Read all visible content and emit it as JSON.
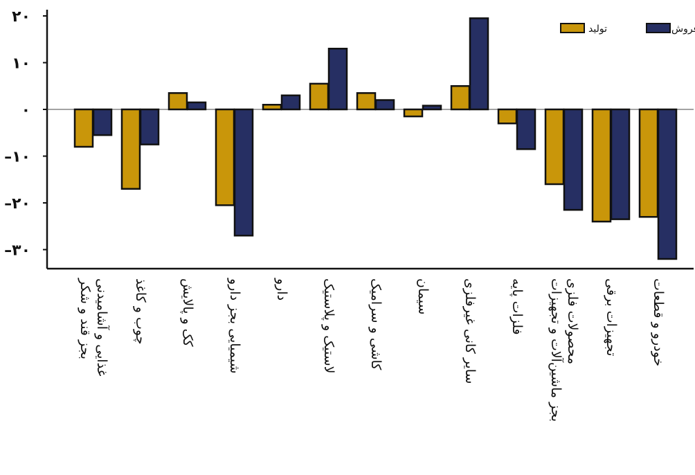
{
  "chart_data": {
    "type": "bar",
    "title": "",
    "xlabel": "",
    "ylabel": "",
    "ylim": [
      -32,
      20
    ],
    "yticks": [
      20,
      10,
      0,
      -10,
      -20,
      -30
    ],
    "ytick_labels": [
      "۲۰",
      "۱۰",
      "۰",
      "–۱۰",
      "–۲۰",
      "–۳۰"
    ],
    "categories": [
      [
        "غذایی و آشامیدنی",
        "بجز قند و شکر"
      ],
      [
        "چوب و کاغذ"
      ],
      [
        "کک و پالایش"
      ],
      [
        "شیمیایی بجز دارو"
      ],
      [
        "دارو"
      ],
      [
        "لاستیک و پلاستیک"
      ],
      [
        "کاشی و سرامیک"
      ],
      [
        "سیمان"
      ],
      [
        "سایر کانی غیرفلزی"
      ],
      [
        "فلزات پایه"
      ],
      [
        "محصولات فلزی",
        "بجز ماشین‌آلات و تجهیزات"
      ],
      [
        "تجهیزات برقی"
      ],
      [
        "خودرو و قطعات"
      ]
    ],
    "series": [
      {
        "name": "تولید",
        "color": "#c9960a",
        "values": [
          -8,
          -17,
          3.5,
          -20.5,
          1,
          5.5,
          3.5,
          -1.5,
          5,
          -3,
          -16,
          -24,
          -23
        ]
      },
      {
        "name": "فروش",
        "color": "#262f63",
        "values": [
          -5.5,
          -7.5,
          1.5,
          -27,
          3,
          13,
          2,
          0.8,
          19.5,
          -8.5,
          -21.5,
          -23.5,
          -32
        ]
      }
    ],
    "legend_position": "top-right",
    "grid": false
  }
}
